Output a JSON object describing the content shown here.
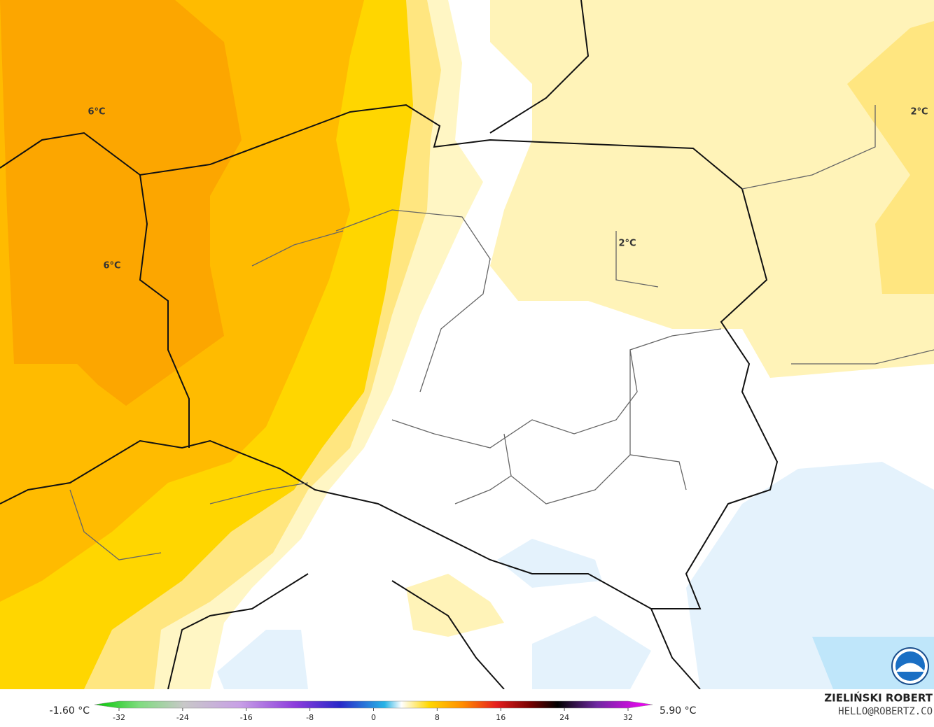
{
  "map": {
    "contour_labels": [
      "6°C",
      "6°C",
      "2°C",
      "2°C"
    ]
  },
  "legend": {
    "min_label": "-1.60 °C",
    "max_label": "5.90 °C",
    "ticks": [
      -32,
      -24,
      -16,
      -8,
      0,
      8,
      16,
      24,
      32
    ]
  },
  "credit": {
    "name": "ZIELIŃSKI ROBERT",
    "email": "HELLO@ROBERTZ.CO"
  }
}
